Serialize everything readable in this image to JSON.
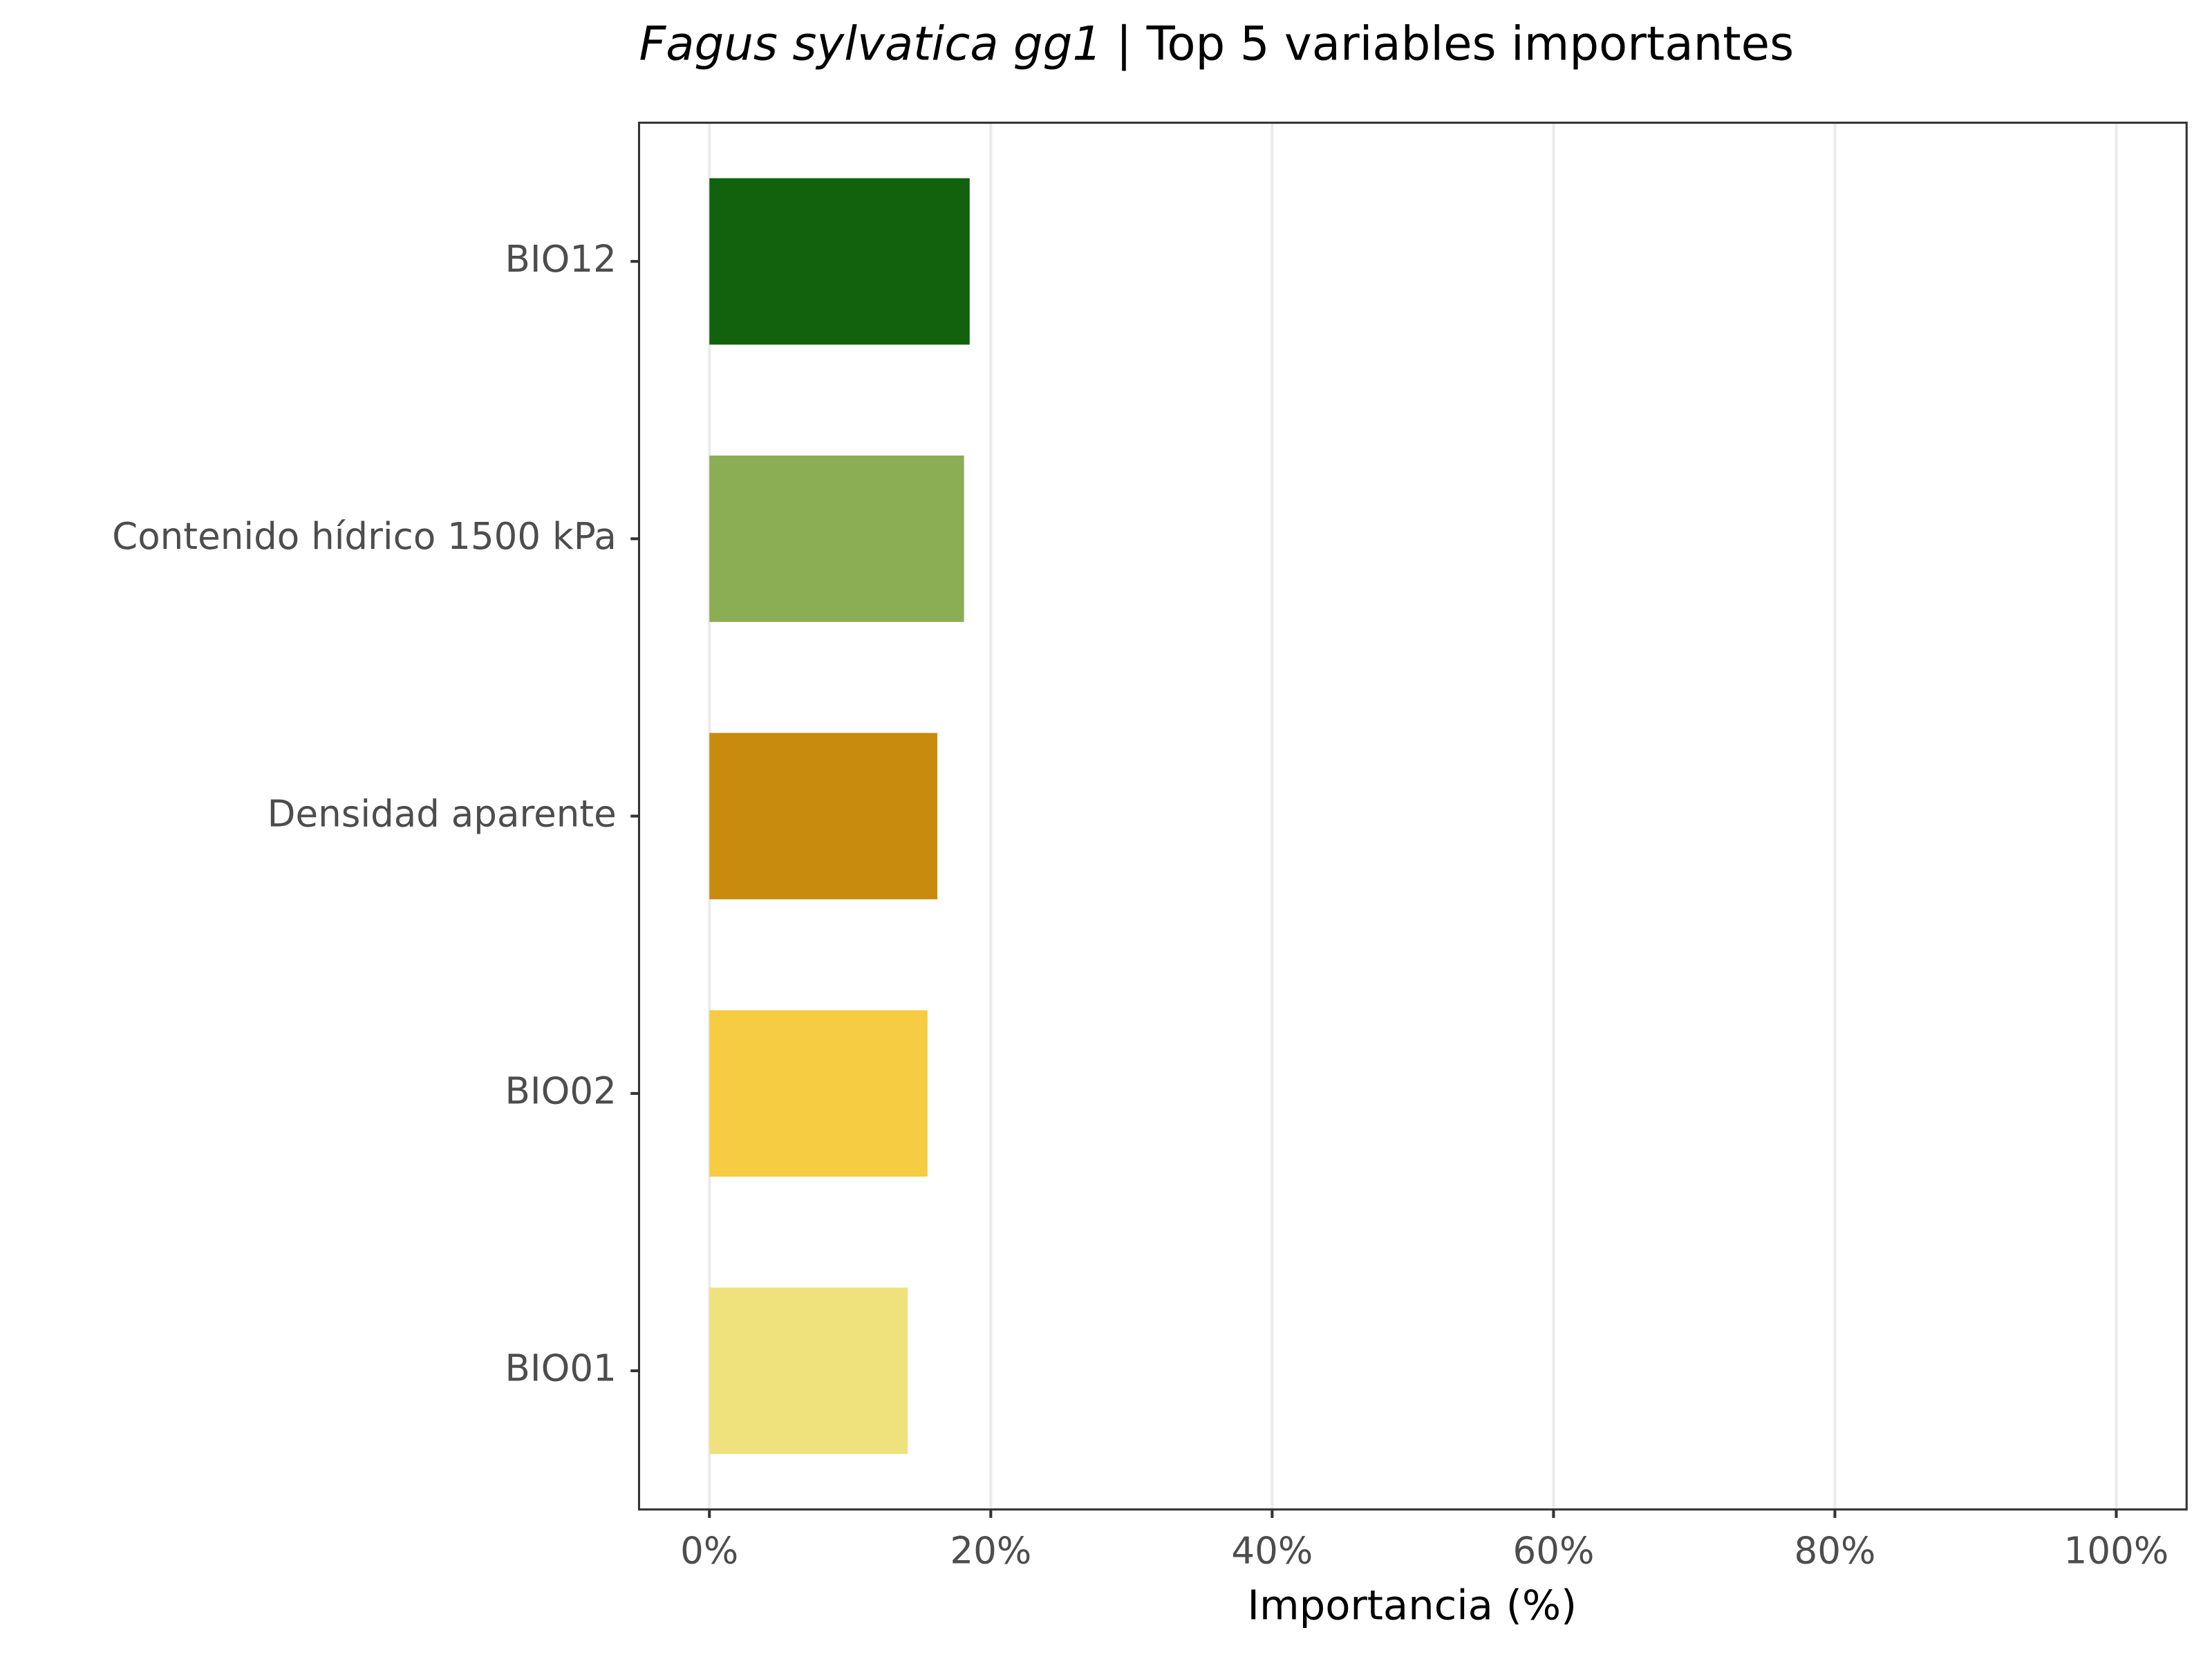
{
  "chart_data": {
    "type": "barh",
    "title": [
      "Fagus sylvatica gg1",
      "| Top 5 variables importantes"
    ],
    "xlabel": "Importancia (%)",
    "categories": [
      "BIO12",
      "Contenido hídrico 1500 kPa",
      "Densidad aparente",
      "BIO02",
      "BIO01"
    ],
    "values": [
      18.5,
      18.1,
      16.2,
      15.5,
      14.1
    ],
    "colors": [
      "#11610d",
      "#8bad53",
      "#c88b0e",
      "#f5cc42",
      "#efe27c"
    ],
    "xlim": [
      -5,
      105
    ],
    "xticks": [
      {
        "value": 0,
        "label": "0%"
      },
      {
        "value": 20,
        "label": "20%"
      },
      {
        "value": 40,
        "label": "40%"
      },
      {
        "value": 60,
        "label": "60%"
      },
      {
        "value": 80,
        "label": "80%"
      },
      {
        "value": 100,
        "label": "100%"
      }
    ],
    "grid": true
  }
}
